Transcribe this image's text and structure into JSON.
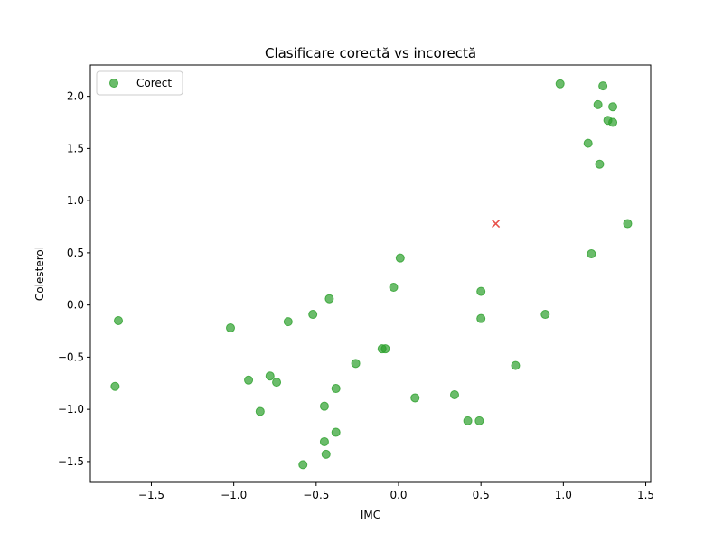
{
  "chart_data": {
    "type": "scatter",
    "title": "Clasificare corectă vs incorectă",
    "xlabel": "IMC",
    "ylabel": "Colesterol",
    "xlim": [
      -1.87,
      1.53
    ],
    "ylim": [
      -1.7,
      2.3
    ],
    "xticks": [
      -1.5,
      -1.0,
      -0.5,
      0.0,
      0.5,
      1.0,
      1.5
    ],
    "xtick_labels": [
      "−1.5",
      "−1.0",
      "−0.5",
      "0.0",
      "0.5",
      "1.0",
      "1.5"
    ],
    "yticks": [
      -1.5,
      -1.0,
      -0.5,
      0.0,
      0.5,
      1.0,
      1.5,
      2.0
    ],
    "ytick_labels": [
      "−1.5",
      "−1.0",
      "−0.5",
      "0.0",
      "0.5",
      "1.0",
      "1.5",
      "2.0"
    ],
    "grid": false,
    "legend_position": "top-left",
    "series": [
      {
        "name": "Corect",
        "marker": "circle",
        "color": "#2ca02c",
        "points": [
          [
            0.98,
            2.12
          ],
          [
            1.24,
            2.1
          ],
          [
            1.21,
            1.92
          ],
          [
            1.3,
            1.9
          ],
          [
            1.27,
            1.77
          ],
          [
            1.3,
            1.75
          ],
          [
            1.15,
            1.55
          ],
          [
            1.22,
            1.35
          ],
          [
            1.39,
            0.78
          ],
          [
            1.17,
            0.49
          ],
          [
            0.01,
            0.45
          ],
          [
            -0.03,
            0.17
          ],
          [
            0.5,
            0.13
          ],
          [
            -0.42,
            0.06
          ],
          [
            -0.52,
            -0.09
          ],
          [
            0.5,
            -0.13
          ],
          [
            0.89,
            -0.09
          ],
          [
            -1.7,
            -0.15
          ],
          [
            -1.02,
            -0.22
          ],
          [
            -0.67,
            -0.16
          ],
          [
            -0.08,
            -0.42
          ],
          [
            -0.1,
            -0.42
          ],
          [
            -0.26,
            -0.56
          ],
          [
            0.71,
            -0.58
          ],
          [
            -0.91,
            -0.72
          ],
          [
            -0.78,
            -0.68
          ],
          [
            -0.74,
            -0.74
          ],
          [
            -1.72,
            -0.78
          ],
          [
            -0.38,
            -0.8
          ],
          [
            0.1,
            -0.89
          ],
          [
            0.34,
            -0.86
          ],
          [
            -0.45,
            -0.97
          ],
          [
            -0.84,
            -1.02
          ],
          [
            0.42,
            -1.11
          ],
          [
            0.49,
            -1.11
          ],
          [
            -0.38,
            -1.22
          ],
          [
            -0.45,
            -1.31
          ],
          [
            -0.44,
            -1.43
          ],
          [
            -0.58,
            -1.53
          ]
        ]
      },
      {
        "name": "",
        "marker": "x",
        "color": "#e8504a",
        "points": [
          [
            0.59,
            0.78
          ]
        ]
      }
    ]
  }
}
